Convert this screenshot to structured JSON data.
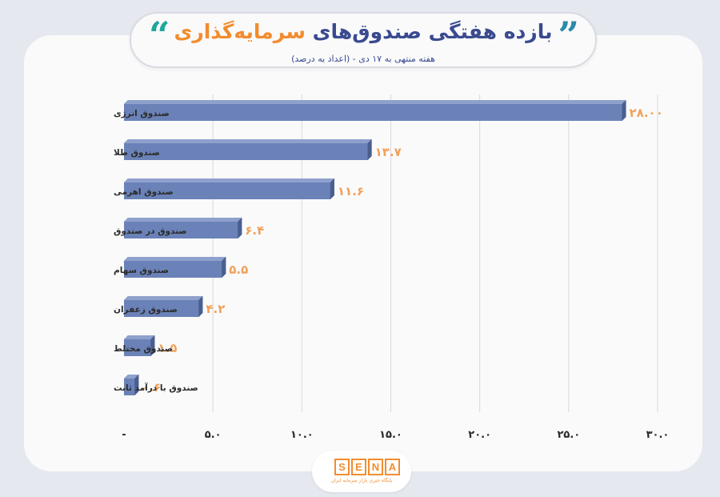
{
  "title": {
    "main": "بازده هفتگی صندوق‌های",
    "accent": "سرمایه‌گذاری",
    "subtitle": "هفته منتهی به ۱۷ دی - (اعداد به درصد)"
  },
  "logo": {
    "letters": [
      "S",
      "E",
      "N",
      "A"
    ],
    "tagline": "پایگاه خبری بازار سرمایه ایران"
  },
  "colors": {
    "bar": "#6a82b8",
    "bar_side": "#4a5e8e",
    "bar_top": "#8ea0cc",
    "value_label": "#f0a15a",
    "text": "#2b2b2b",
    "grid": "#d7d9df"
  },
  "chart_data": {
    "type": "bar",
    "orientation": "horizontal",
    "categories": [
      "صندوق انرژی",
      "صندوق طلا",
      "صندوق اهرمی",
      "صندوق در صندوق",
      "صندوق سهام",
      "صندوق زعفران",
      "صندوق مختلط",
      "صندوق با درآمد ثابت"
    ],
    "values": [
      28.0,
      13.7,
      11.6,
      6.4,
      5.5,
      4.2,
      1.5,
      0.6
    ],
    "value_labels": [
      "۲۸.۰۰",
      "۱۳.۷",
      "۱۱.۶",
      "۶.۴",
      "۵.۵",
      "۴.۲",
      "۱.۵",
      "۰.۶"
    ],
    "x_ticks": [
      0,
      5,
      10,
      15,
      20,
      25,
      30
    ],
    "x_tick_labels": [
      "-",
      "۵.۰",
      "۱۰.۰",
      "۱۵.۰",
      "۲۰.۰",
      "۲۵.۰",
      "۳۰.۰"
    ],
    "xlim": [
      0,
      30
    ],
    "grid": true,
    "legend": "none"
  }
}
